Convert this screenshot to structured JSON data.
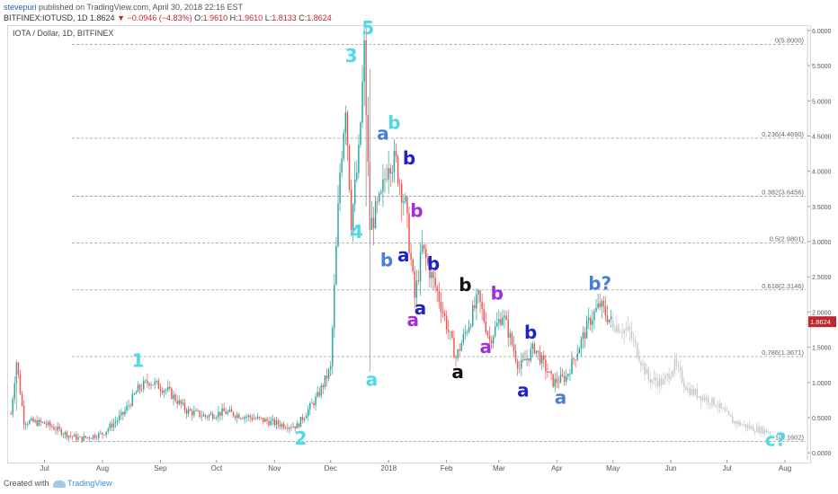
{
  "header": {
    "author": "stevepuri",
    "published_text": "published on TradingView.com, April 30, 2018 22:16 EST",
    "symbol_line": "BITFINEX:IOTUSD, 1D",
    "last": "1.8624",
    "change": "−0.0946 (−4.83%)",
    "o_label": "O:",
    "o": "1.9610",
    "h_label": "H:",
    "h": "1.9610",
    "l_label": "L:",
    "l": "1.8133",
    "c_label": "C:",
    "c": "1.8624"
  },
  "symbol_label": "IOTA / Dollar, 1D, BITFINEX",
  "footer": {
    "created_with": "Created with",
    "brand": "TradingView"
  },
  "colors": {
    "up": "#26a69a",
    "down": "#ef5350",
    "projection": "#c8c8c8",
    "cyan": "#4dd9e6",
    "steel": "#4a7fd1",
    "navy": "#1e22c9",
    "purple": "#a32ee0",
    "black": "#111111",
    "price_tag": "#c0262d"
  },
  "chart_data": {
    "type": "candlestick",
    "title": "IOTA / Dollar, 1D, BITFINEX",
    "x_ticks": [
      "Jul",
      "Aug",
      "Sep",
      "Oct",
      "Nov",
      "Dec",
      "2018",
      "Feb",
      "Mar",
      "Apr",
      "May",
      "Jun",
      "Jul",
      "Aug"
    ],
    "y_ticks": [
      "0.0000",
      "0.5000",
      "1.0000",
      "1.5000",
      "2.0000",
      "2.5000",
      "3.0000",
      "3.5000",
      "4.0000",
      "4.5000",
      "5.0000",
      "5.5000",
      "6.0000"
    ],
    "ylim": [
      -0.1,
      6.05
    ],
    "last_price": 1.8624,
    "fib_levels": [
      {
        "ratio": "0",
        "price": 5.8,
        "label": "0(5.8000)"
      },
      {
        "ratio": "0.236",
        "price": 4.469,
        "label": "0.236(4.4690)"
      },
      {
        "ratio": "0.382",
        "price": 3.6456,
        "label": "0.382(3.6456)"
      },
      {
        "ratio": "0.5",
        "price": 2.9801,
        "label": "0.5(2.9801)"
      },
      {
        "ratio": "0.618",
        "price": 2.3146,
        "label": "0.618(2.3146)"
      },
      {
        "ratio": "0.786",
        "price": 1.3671,
        "label": "0.786(1.3671)"
      },
      {
        "ratio": "1",
        "price": 0.1602,
        "label": "1(0.1602)"
      }
    ],
    "price_path": [
      {
        "date": "2017-06-13",
        "price": 0.55
      },
      {
        "date": "2017-06-16",
        "price": 1.3
      },
      {
        "date": "2017-06-20",
        "price": 0.45
      },
      {
        "date": "2017-07-01",
        "price": 0.42
      },
      {
        "date": "2017-07-14",
        "price": 0.25
      },
      {
        "date": "2017-07-20",
        "price": 0.2
      },
      {
        "date": "2017-08-01",
        "price": 0.27
      },
      {
        "date": "2017-08-12",
        "price": 0.55
      },
      {
        "date": "2017-08-20",
        "price": 0.9
      },
      {
        "date": "2017-08-26",
        "price": 1.02
      },
      {
        "date": "2017-09-05",
        "price": 0.88
      },
      {
        "date": "2017-09-15",
        "price": 0.6
      },
      {
        "date": "2017-09-25",
        "price": 0.52
      },
      {
        "date": "2017-10-05",
        "price": 0.58
      },
      {
        "date": "2017-10-20",
        "price": 0.5
      },
      {
        "date": "2017-11-05",
        "price": 0.4
      },
      {
        "date": "2017-11-13",
        "price": 0.38
      },
      {
        "date": "2017-11-24",
        "price": 0.8
      },
      {
        "date": "2017-12-01",
        "price": 1.2
      },
      {
        "date": "2017-12-06",
        "price": 4.0
      },
      {
        "date": "2017-12-09",
        "price": 5.0
      },
      {
        "date": "2017-12-12",
        "price": 3.3
      },
      {
        "date": "2017-12-16",
        "price": 4.2
      },
      {
        "date": "2017-12-19",
        "price": 5.7
      },
      {
        "date": "2017-12-22",
        "price": 3.2
      },
      {
        "date": "2017-12-28",
        "price": 3.6
      },
      {
        "date": "2018-01-01",
        "price": 4.2
      },
      {
        "date": "2018-01-05",
        "price": 4.1
      },
      {
        "date": "2018-01-10",
        "price": 3.5
      },
      {
        "date": "2018-01-15",
        "price": 2.2
      },
      {
        "date": "2018-01-19",
        "price": 2.9
      },
      {
        "date": "2018-01-28",
        "price": 2.2
      },
      {
        "date": "2018-02-06",
        "price": 1.35
      },
      {
        "date": "2018-02-18",
        "price": 2.2
      },
      {
        "date": "2018-02-24",
        "price": 1.6
      },
      {
        "date": "2018-03-03",
        "price": 1.98
      },
      {
        "date": "2018-03-12",
        "price": 1.2
      },
      {
        "date": "2018-03-20",
        "price": 1.5
      },
      {
        "date": "2018-03-30",
        "price": 1.0
      },
      {
        "date": "2018-04-06",
        "price": 1.08
      },
      {
        "date": "2018-04-19",
        "price": 1.9
      },
      {
        "date": "2018-04-24",
        "price": 2.1
      },
      {
        "date": "2018-04-30",
        "price": 1.86
      }
    ],
    "projection_path": [
      {
        "date": "2018-04-30",
        "price": 1.86
      },
      {
        "date": "2018-05-10",
        "price": 1.7
      },
      {
        "date": "2018-05-20",
        "price": 1.05
      },
      {
        "date": "2018-05-28",
        "price": 1.0
      },
      {
        "date": "2018-06-03",
        "price": 1.25
      },
      {
        "date": "2018-06-10",
        "price": 0.9
      },
      {
        "date": "2018-06-25",
        "price": 0.7
      },
      {
        "date": "2018-07-04",
        "price": 0.45
      },
      {
        "date": "2018-07-14",
        "price": 0.35
      },
      {
        "date": "2018-07-24",
        "price": 0.3
      }
    ],
    "annotations": [
      {
        "text": "1",
        "date": "2017-08-20",
        "price": 1.22,
        "color": "cyan"
      },
      {
        "text": "2",
        "date": "2017-11-15",
        "price": 0.12,
        "color": "cyan"
      },
      {
        "text": "3",
        "date": "2017-12-12",
        "price": 5.55,
        "color": "cyan"
      },
      {
        "text": "5",
        "date": "2017-12-21",
        "price": 5.95,
        "color": "cyan"
      },
      {
        "text": "4",
        "date": "2017-12-15",
        "price": 3.05,
        "color": "cyan"
      },
      {
        "text": "a",
        "date": "2017-12-23",
        "price": 0.95,
        "color": "cyan"
      },
      {
        "text": "a",
        "date": "2017-12-29",
        "price": 4.45,
        "color": "steel"
      },
      {
        "text": "b",
        "date": "2018-01-04",
        "price": 4.6,
        "color": "cyan"
      },
      {
        "text": "b",
        "date": "2017-12-31",
        "price": 2.65,
        "color": "steel"
      },
      {
        "text": "b",
        "date": "2018-01-12",
        "price": 4.1,
        "color": "navy"
      },
      {
        "text": "a",
        "date": "2018-01-09",
        "price": 2.72,
        "color": "navy"
      },
      {
        "text": "b",
        "date": "2018-01-16",
        "price": 3.35,
        "color": "purple"
      },
      {
        "text": "a",
        "date": "2018-01-14",
        "price": 1.8,
        "color": "purple"
      },
      {
        "text": "a",
        "date": "2018-01-18",
        "price": 1.97,
        "color": "navy"
      },
      {
        "text": "b",
        "date": "2018-01-25",
        "price": 2.6,
        "color": "navy"
      },
      {
        "text": "a",
        "date": "2018-02-07",
        "price": 1.06,
        "color": "black"
      },
      {
        "text": "b",
        "date": "2018-02-11",
        "price": 2.3,
        "color": "black"
      },
      {
        "text": "b",
        "date": "2018-02-28",
        "price": 2.18,
        "color": "purple"
      },
      {
        "text": "a",
        "date": "2018-02-22",
        "price": 1.42,
        "color": "purple"
      },
      {
        "text": "b",
        "date": "2018-03-18",
        "price": 1.62,
        "color": "navy"
      },
      {
        "text": "a",
        "date": "2018-03-14",
        "price": 0.8,
        "color": "navy"
      },
      {
        "text": "a",
        "date": "2018-04-03",
        "price": 0.7,
        "color": "steel"
      },
      {
        "text": "b?",
        "date": "2018-04-24",
        "price": 2.32,
        "color": "steel"
      },
      {
        "text": "c?",
        "date": "2018-07-27",
        "price": 0.1,
        "color": "cyan"
      }
    ]
  }
}
